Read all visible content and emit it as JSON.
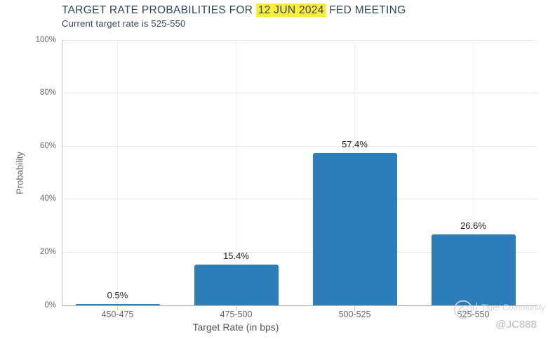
{
  "chart_data": {
    "type": "bar",
    "title": "TARGET RATE PROBABILITIES FOR 12 JUN 2024 FED MEETING",
    "title_parts": {
      "prefix": "TARGET RATE PROBABILITIES FOR ",
      "highlight": "12 JUN 2024",
      "suffix": " FED MEETING"
    },
    "subtitle": "Current target rate is 525-550",
    "xlabel": "Target Rate (in bps)",
    "ylabel": "Probability",
    "categories": [
      "450-475",
      "475-500",
      "500-525",
      "525-550"
    ],
    "values": [
      0.5,
      15.4,
      57.4,
      26.6
    ],
    "value_labels": [
      "0.5%",
      "15.4%",
      "57.4%",
      "26.6%"
    ],
    "ylim": [
      0,
      100
    ],
    "yticks": [
      0,
      20,
      40,
      60,
      80,
      100
    ],
    "ytick_labels": [
      "0%",
      "20%",
      "40%",
      "60%",
      "80%",
      "100%"
    ],
    "grid": true,
    "legend": false,
    "colors": {
      "bar": "#2d7eb8",
      "title_text": "#33475b",
      "date_highlight": "#f8ec3d",
      "axis_text": "#666666",
      "value_label_text": "#1a1a1a"
    }
  },
  "watermark": {
    "brand": "Tiger Community",
    "handle": "@JC888",
    "logo_icon": "tiger-logo-icon"
  }
}
